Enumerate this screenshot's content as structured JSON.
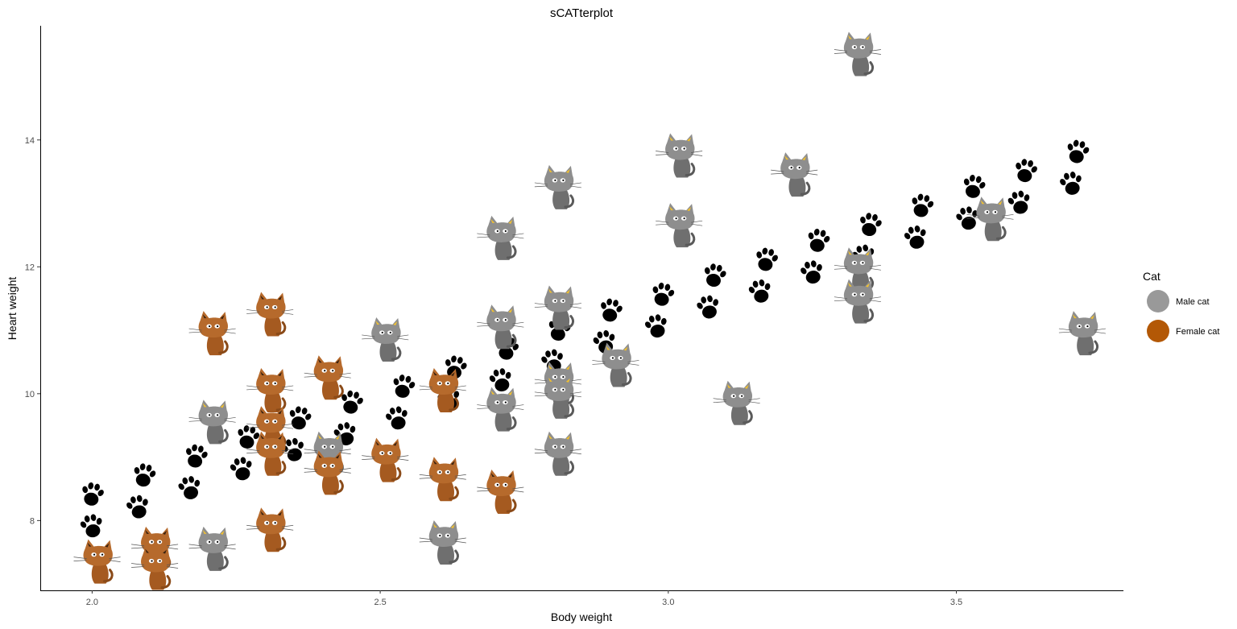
{
  "chart_data": {
    "type": "scatter",
    "title": "sCATterplot",
    "xlabel": "Body weight",
    "ylabel": "Heart weight",
    "xlim": [
      1.91,
      3.79
    ],
    "ylim": [
      6.9,
      15.8
    ],
    "x_ticks": [
      2.0,
      2.5,
      3.0,
      3.5
    ],
    "x_tick_labels": [
      "2.0",
      "2.5",
      "3.0",
      "3.5"
    ],
    "y_ticks": [
      8,
      10,
      12,
      14
    ],
    "y_tick_labels": [
      "8",
      "10",
      "12",
      "14"
    ],
    "grid": false,
    "legend": {
      "title": "Cat",
      "position": "right",
      "entries": [
        {
          "label": "Male cat",
          "color": "#999999"
        },
        {
          "label": "Female cat",
          "color": "#b35806"
        }
      ]
    },
    "series": [
      {
        "name": "Male cat",
        "marker": "grey-cat-icon",
        "color": "#8c8c8c",
        "points": [
          [
            3.33,
            15.4
          ],
          [
            3.02,
            13.8
          ],
          [
            3.22,
            13.5
          ],
          [
            2.81,
            13.3
          ],
          [
            3.02,
            12.7
          ],
          [
            2.71,
            12.5
          ],
          [
            3.56,
            12.8
          ],
          [
            3.33,
            12.0
          ],
          [
            3.33,
            11.5
          ],
          [
            2.81,
            11.4
          ],
          [
            2.71,
            11.1
          ],
          [
            2.51,
            10.9
          ],
          [
            3.72,
            11.0
          ],
          [
            2.91,
            10.5
          ],
          [
            2.81,
            10.2
          ],
          [
            2.81,
            10.0
          ],
          [
            2.71,
            9.8
          ],
          [
            3.12,
            9.9
          ],
          [
            2.21,
            9.6
          ],
          [
            2.41,
            9.1
          ],
          [
            2.81,
            9.1
          ],
          [
            2.21,
            7.6
          ],
          [
            2.61,
            7.7
          ]
        ]
      },
      {
        "name": "Female cat",
        "marker": "orange-cat-icon",
        "color": "#b3661f",
        "points": [
          [
            2.21,
            11.0
          ],
          [
            2.31,
            11.3
          ],
          [
            2.31,
            10.1
          ],
          [
            2.41,
            10.3
          ],
          [
            2.61,
            10.1
          ],
          [
            2.31,
            9.5
          ],
          [
            2.31,
            9.1
          ],
          [
            2.51,
            9.0
          ],
          [
            2.41,
            8.8
          ],
          [
            2.61,
            8.7
          ],
          [
            2.71,
            8.5
          ],
          [
            2.31,
            7.9
          ],
          [
            2.01,
            7.4
          ],
          [
            2.11,
            7.6
          ],
          [
            2.11,
            7.3
          ]
        ]
      }
    ],
    "paw_trail": {
      "marker": "paw-print-icon",
      "color": "#000000",
      "points": [
        [
          2.0,
          7.9
        ],
        [
          2.0,
          8.4
        ],
        [
          2.08,
          8.2
        ],
        [
          2.09,
          8.7
        ],
        [
          2.17,
          8.5
        ],
        [
          2.18,
          9.0
        ],
        [
          2.26,
          8.8
        ],
        [
          2.27,
          9.3
        ],
        [
          2.35,
          9.1
        ],
        [
          2.36,
          9.6
        ],
        [
          2.44,
          9.35
        ],
        [
          2.45,
          9.85
        ],
        [
          2.53,
          9.6
        ],
        [
          2.54,
          10.1
        ],
        [
          2.62,
          9.9
        ],
        [
          2.63,
          10.4
        ],
        [
          2.71,
          10.2
        ],
        [
          2.72,
          10.7
        ],
        [
          2.8,
          10.5
        ],
        [
          2.81,
          11.0
        ],
        [
          2.89,
          10.8
        ],
        [
          2.9,
          11.3
        ],
        [
          2.98,
          11.05
        ],
        [
          2.99,
          11.55
        ],
        [
          3.07,
          11.35
        ],
        [
          3.08,
          11.85
        ],
        [
          3.16,
          11.6
        ],
        [
          3.17,
          12.1
        ],
        [
          3.25,
          11.9
        ],
        [
          3.26,
          12.4
        ],
        [
          3.34,
          12.15
        ],
        [
          3.35,
          12.65
        ],
        [
          3.43,
          12.45
        ],
        [
          3.44,
          12.95
        ],
        [
          3.52,
          12.75
        ],
        [
          3.53,
          13.25
        ],
        [
          3.61,
          13.0
        ],
        [
          3.62,
          13.5
        ],
        [
          3.7,
          13.3
        ],
        [
          3.71,
          13.8
        ]
      ]
    }
  }
}
